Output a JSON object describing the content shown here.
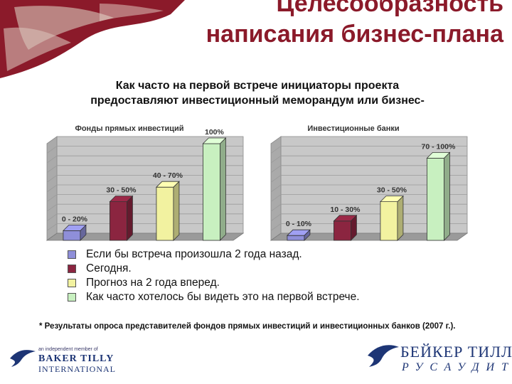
{
  "slide": {
    "title": "Целесообразность написания бизнес-плана",
    "subtitle_line1": "Как часто на первой встрече инициаторы проекта",
    "subtitle_line2": "предоставляют инвестиционный меморандум или бизнес-"
  },
  "legend": [
    {
      "label": "Если бы встреча произошла 2 года назад.",
      "color": "#8f8fd9"
    },
    {
      "label": "Сегодня.",
      "color": "#8b2540"
    },
    {
      "label": "Прогноз на 2 года вперед.",
      "color": "#f2f2a0"
    },
    {
      "label": "Как часто хотелось бы видеть это на первой встрече.",
      "color": "#c8f0c0"
    }
  ],
  "footnote": "* Результаты опроса представителей фондов прямых инвестиций и инвестиционных банков (2007 г.).",
  "logos": {
    "left_small": "an independent member of",
    "left_brand": "BAKER TILLY",
    "left_sub": "INTERNATIONAL",
    "right_brand": "БЕЙКЕР ТИЛЛИ",
    "right_sub": "РУСАУДИТ"
  },
  "chart_data": [
    {
      "type": "bar",
      "title": "Фонды прямых инвестиций",
      "categories": [
        "0 - 20%",
        "30 - 50%",
        "40 - 70%",
        "100%"
      ],
      "values": [
        10,
        40,
        55,
        100
      ],
      "colors": [
        "#8f8fd9",
        "#8b2540",
        "#f2f2a0",
        "#c8f0c0"
      ],
      "ylim": [
        0,
        100
      ],
      "grid": true
    },
    {
      "type": "bar",
      "title": "Инвестиционные банки",
      "categories": [
        "0 - 10%",
        "10 - 30%",
        "30 - 50%",
        "70 - 100%"
      ],
      "values": [
        5,
        20,
        40,
        85
      ],
      "colors": [
        "#8f8fd9",
        "#8b2540",
        "#f2f2a0",
        "#c8f0c0"
      ],
      "ylim": [
        0,
        100
      ],
      "grid": true
    }
  ]
}
